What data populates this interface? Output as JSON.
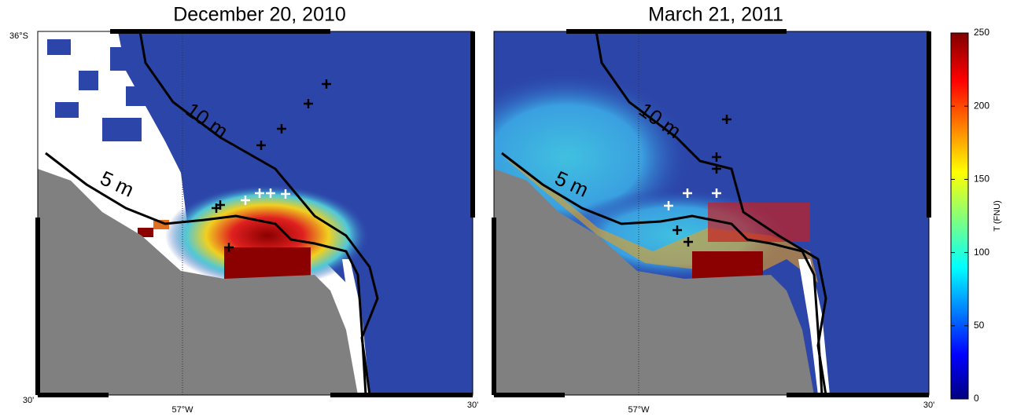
{
  "panels": [
    {
      "title": "December 20, 2010",
      "contours": [
        "10 m",
        "5 m"
      ],
      "lat_label": "36°S",
      "lat_minor_label": "30'",
      "lon_label": "57°W",
      "lon_minor_label": "30'"
    },
    {
      "title": "March 21, 2011",
      "contours": [
        "10 m",
        "5 m"
      ],
      "lon_label": "57°W",
      "lon_minor_label": "30'"
    }
  ],
  "colorbar": {
    "label": "T (FNU)",
    "lim": [
      0,
      250
    ],
    "ticks": [
      0,
      50,
      100,
      150,
      200,
      250
    ]
  }
}
